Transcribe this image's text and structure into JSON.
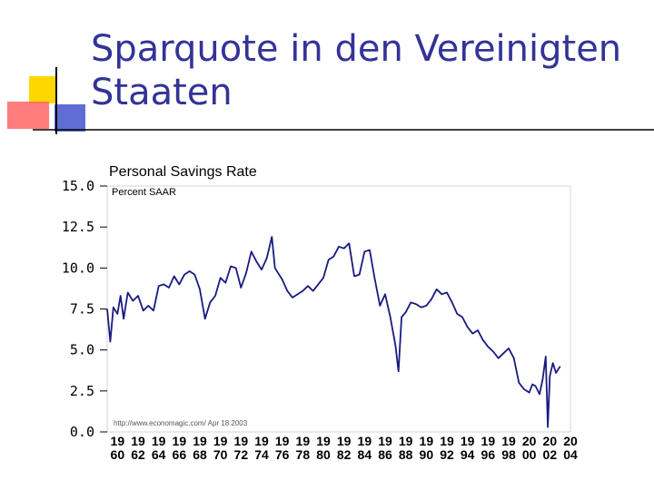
{
  "slide": {
    "title": "Sparquote in den Vereinigten Staaten",
    "colors": {
      "title": "#333399",
      "accent_yellow": "#FFD700",
      "accent_red": "#FF6666",
      "accent_blue": "#4455CC",
      "series": "#1a1a80"
    }
  },
  "chart_data": {
    "type": "line",
    "title": "Personal Savings Rate",
    "subtitle": "Percent SAAR",
    "credit": "http://www.economagic.com/  Apr 18 2003",
    "ylim": [
      0,
      15
    ],
    "yticks": [
      "0.0",
      "2.5",
      "5.0",
      "7.5",
      "10.0",
      "12.5",
      "15.0"
    ],
    "xlim": [
      1959,
      2004
    ],
    "xticks_top": [
      "19",
      "19",
      "19",
      "19",
      "19",
      "19",
      "19",
      "19",
      "19",
      "19",
      "19",
      "19",
      "19",
      "19",
      "19",
      "19",
      "19",
      "19",
      "19",
      "19",
      "20",
      "20",
      "20"
    ],
    "xticks_bottom": [
      "60",
      "62",
      "64",
      "66",
      "68",
      "70",
      "72",
      "74",
      "76",
      "78",
      "80",
      "82",
      "84",
      "86",
      "88",
      "90",
      "92",
      "94",
      "96",
      "98",
      "00",
      "02",
      "04"
    ],
    "grid": false,
    "series": [
      {
        "x": [
          1959.0,
          1959.3,
          1959.6,
          1960.0,
          1960.3,
          1960.6,
          1961.0,
          1961.5,
          1962.0,
          1962.5,
          1963.0,
          1963.5,
          1964.0,
          1964.5,
          1965.0,
          1965.5,
          1966.0,
          1966.5,
          1967.0,
          1967.5,
          1968.0,
          1968.5,
          1969.0,
          1969.5,
          1970.0,
          1970.5,
          1971.0,
          1971.5,
          1972.0,
          1972.5,
          1973.0,
          1973.5,
          1974.0,
          1974.5,
          1975.0,
          1975.3,
          1975.6,
          1976.0,
          1976.5,
          1977.0,
          1977.5,
          1978.0,
          1978.5,
          1979.0,
          1979.5,
          1980.0,
          1980.5,
          1981.0,
          1981.5,
          1982.0,
          1982.5,
          1983.0,
          1983.5,
          1984.0,
          1984.5,
          1985.0,
          1985.5,
          1986.0,
          1986.5,
          1987.0,
          1987.3,
          1987.6,
          1988.0,
          1988.5,
          1989.0,
          1989.5,
          1990.0,
          1990.5,
          1991.0,
          1991.5,
          1992.0,
          1992.5,
          1993.0,
          1993.5,
          1994.0,
          1994.5,
          1995.0,
          1995.5,
          1996.0,
          1996.5,
          1997.0,
          1997.5,
          1998.0,
          1998.5,
          1999.0,
          1999.5,
          2000.0,
          2000.3,
          2000.6,
          2001.0,
          2001.3,
          2001.6,
          2001.8,
          2002.0,
          2002.3,
          2002.6,
          2003.0
        ],
        "values": [
          7.5,
          5.5,
          7.6,
          7.2,
          8.3,
          6.9,
          8.5,
          8.0,
          8.3,
          7.4,
          7.7,
          7.4,
          8.9,
          9.0,
          8.8,
          9.5,
          9.0,
          9.6,
          9.8,
          9.6,
          8.7,
          6.9,
          7.9,
          8.3,
          9.4,
          9.1,
          10.1,
          10.0,
          8.8,
          9.7,
          11.0,
          10.4,
          9.9,
          10.6,
          11.9,
          10.0,
          9.7,
          9.3,
          8.6,
          8.2,
          8.4,
          8.6,
          8.9,
          8.6,
          9.0,
          9.4,
          10.5,
          10.7,
          11.3,
          11.2,
          11.5,
          9.5,
          9.6,
          11.0,
          11.1,
          9.3,
          7.7,
          8.4,
          7.0,
          5.3,
          3.7,
          7.0,
          7.3,
          7.9,
          7.8,
          7.6,
          7.7,
          8.1,
          8.7,
          8.4,
          8.5,
          7.9,
          7.2,
          7.0,
          6.4,
          6.0,
          6.2,
          5.6,
          5.2,
          4.9,
          4.5,
          4.8,
          5.1,
          4.5,
          3.0,
          2.6,
          2.4,
          2.9,
          2.8,
          2.3,
          3.2,
          4.6,
          0.3,
          3.4,
          4.2,
          3.6,
          4.0
        ]
      }
    ]
  }
}
